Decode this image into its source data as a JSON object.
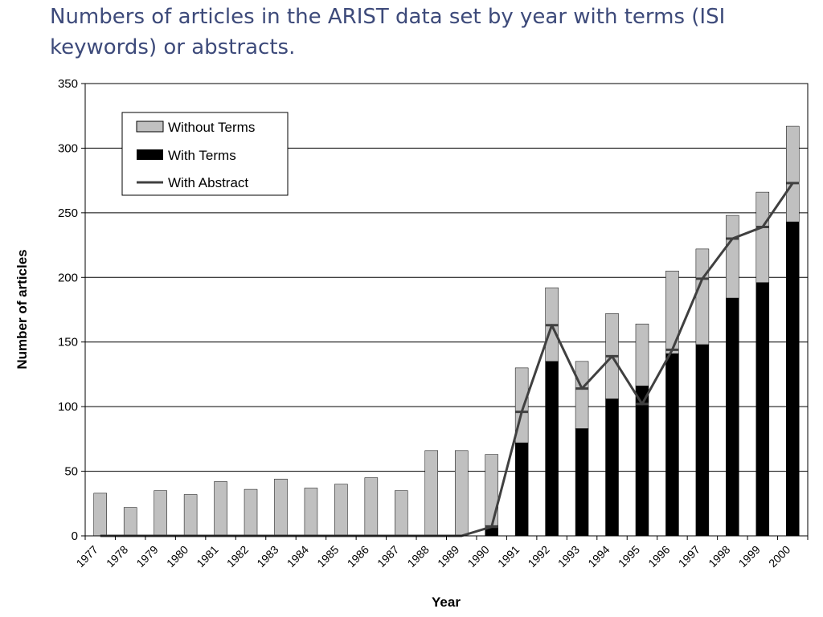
{
  "slide": {
    "title": "Numbers of articles in the ARIST data set by year with terms (ISI keywords) or abstracts."
  },
  "chart_data": {
    "type": "bar",
    "stacked": true,
    "xlabel": "Year",
    "ylabel": "Number of articles",
    "ylim": [
      0,
      350
    ],
    "yticks": [
      0,
      50,
      100,
      150,
      200,
      250,
      300,
      350
    ],
    "grid": true,
    "legend_position": "top-left",
    "categories": [
      "1977",
      "1978",
      "1979",
      "1980",
      "1981",
      "1982",
      "1983",
      "1984",
      "1985",
      "1986",
      "1987",
      "1988",
      "1989",
      "1990",
      "1991",
      "1992",
      "1993",
      "1994",
      "1995",
      "1996",
      "1997",
      "1998",
      "1999",
      "2000"
    ],
    "series": [
      {
        "name": "Without Terms",
        "kind": "bar",
        "color": "#c0c0c0",
        "values": [
          33,
          22,
          35,
          32,
          42,
          36,
          44,
          37,
          40,
          45,
          35,
          66,
          66,
          55,
          58,
          57,
          52,
          66,
          48,
          64,
          74,
          64,
          70,
          74
        ]
      },
      {
        "name": "With Terms",
        "kind": "bar",
        "color": "#000000",
        "values": [
          0,
          0,
          0,
          0,
          0,
          0,
          0,
          0,
          0,
          0,
          0,
          0,
          0,
          8,
          72,
          135,
          83,
          106,
          116,
          141,
          148,
          184,
          196,
          243
        ]
      },
      {
        "name": "With Abstract",
        "kind": "line",
        "color": "#404040",
        "values": [
          0,
          0,
          0,
          0,
          0,
          0,
          0,
          0,
          0,
          0,
          0,
          0,
          0,
          7,
          96,
          163,
          114,
          139,
          102,
          144,
          199,
          230,
          239,
          273
        ]
      }
    ]
  }
}
